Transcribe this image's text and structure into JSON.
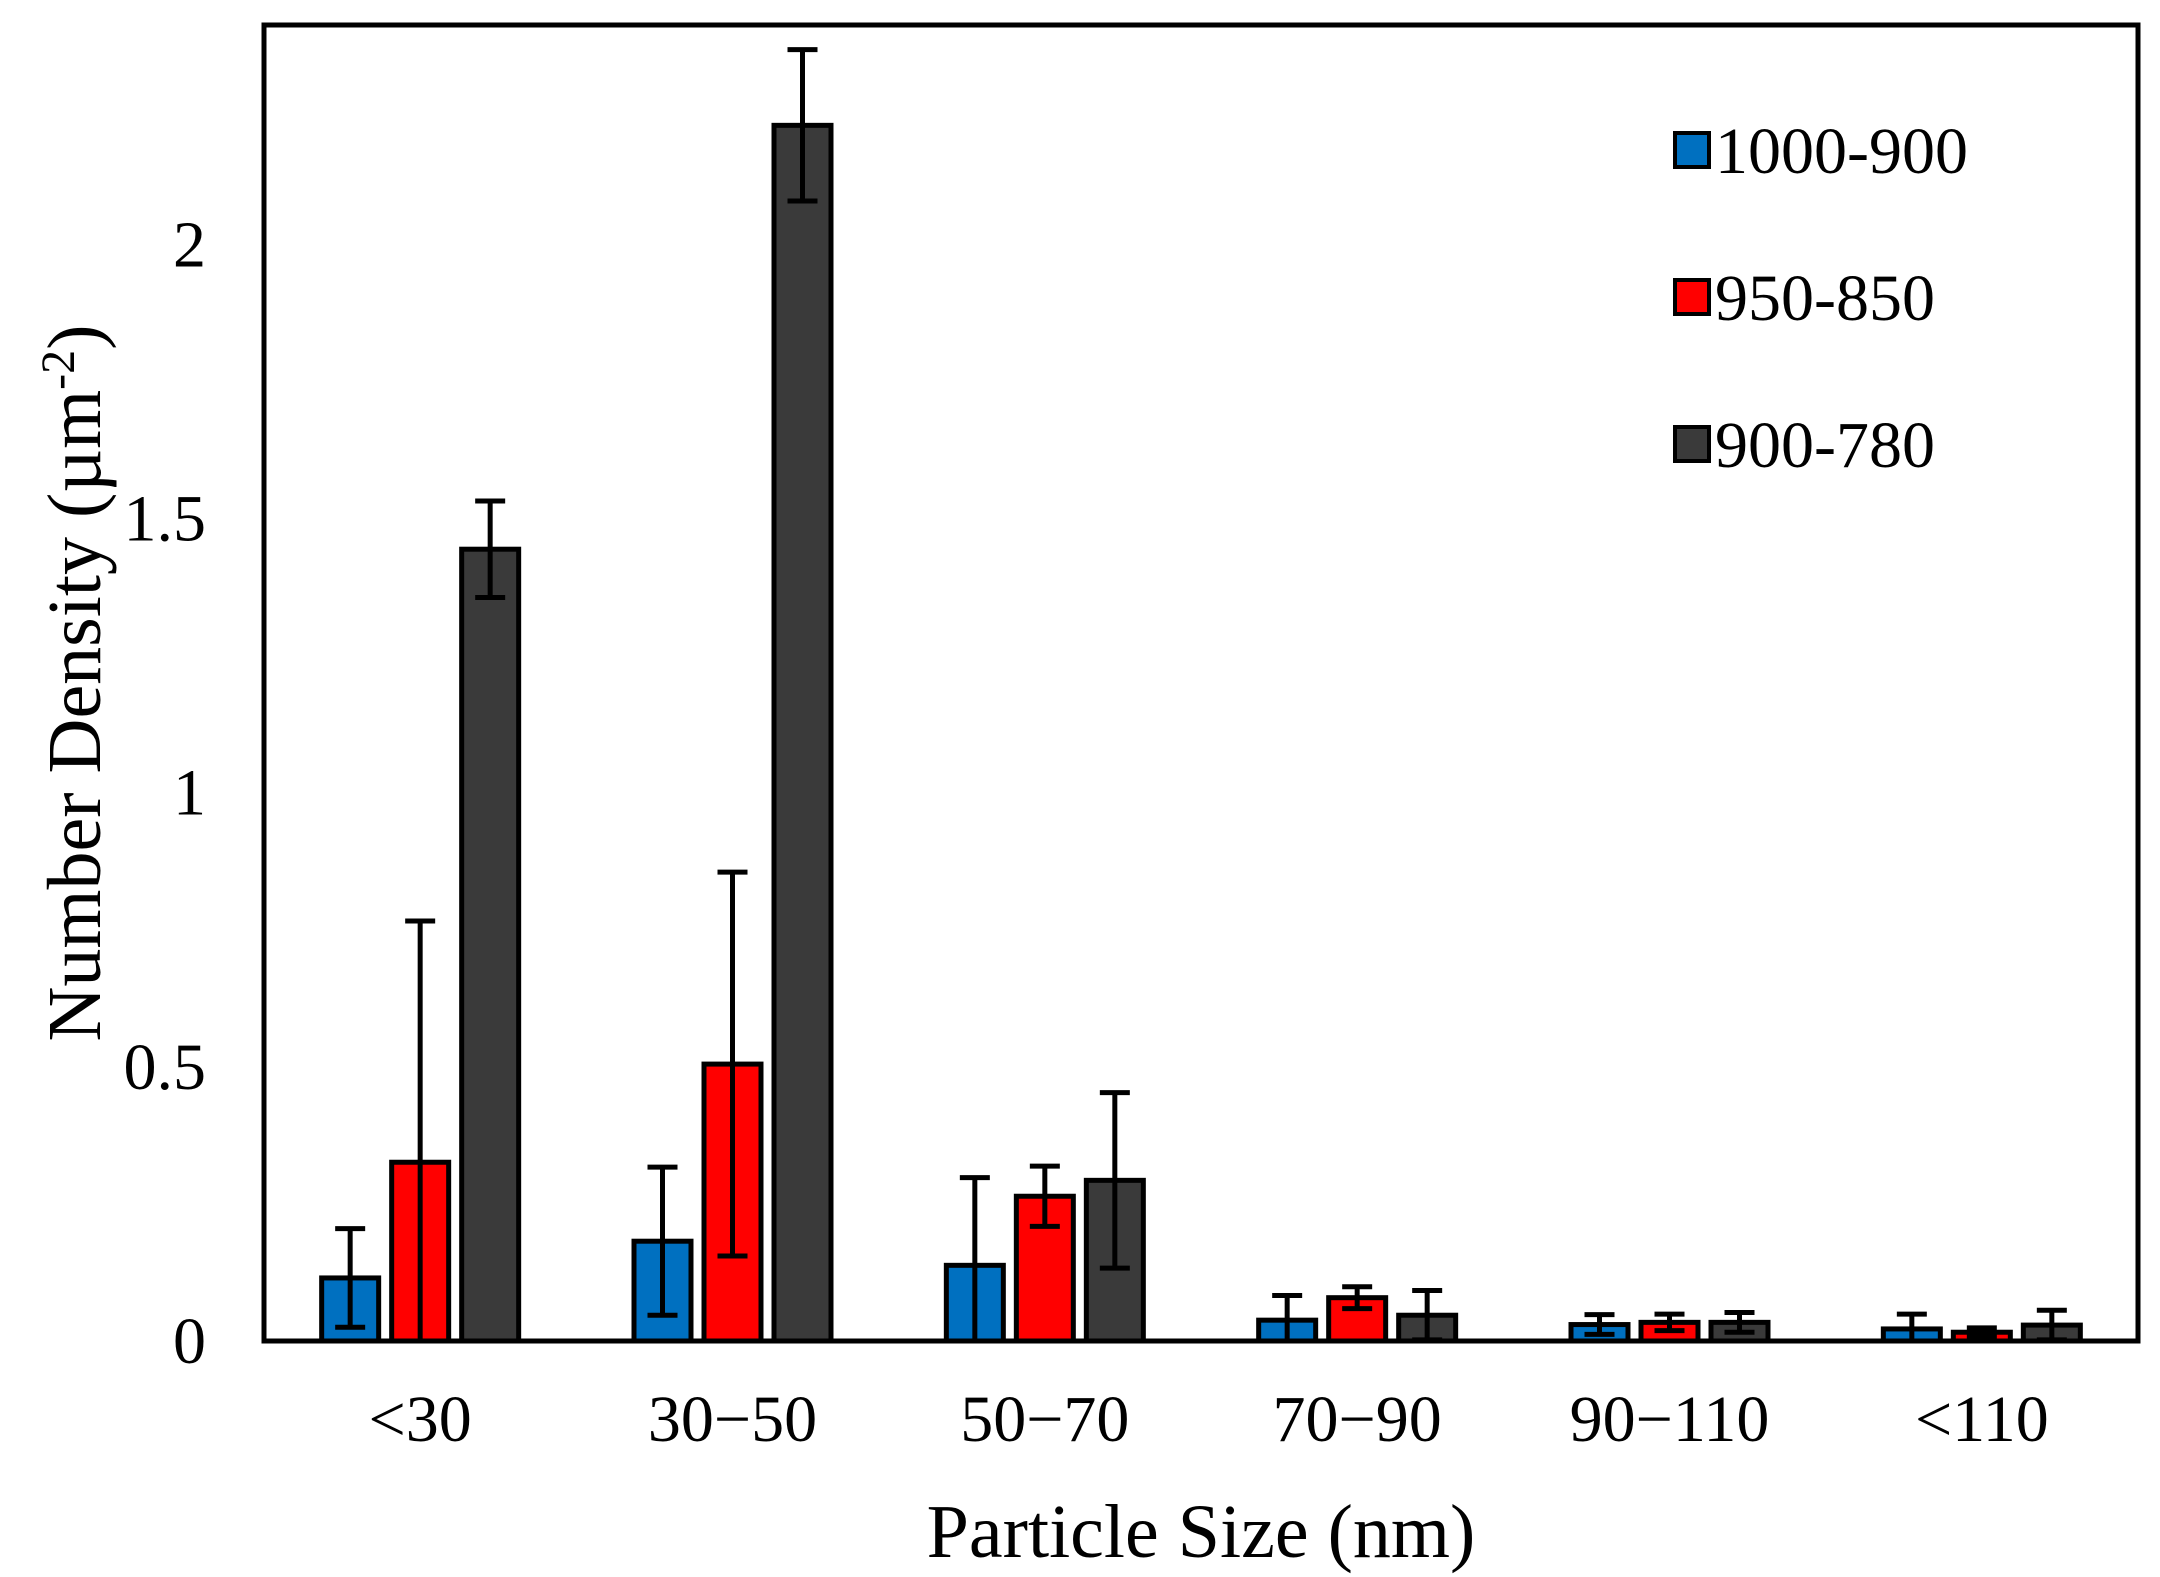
{
  "chart_data": {
    "type": "bar",
    "title": "",
    "xlabel": "Particle Size (nm)",
    "ylabel": "Number Density (µm⁻²)",
    "ylabel_main": "Number Density (µm",
    "ylabel_sup": "-2",
    "ylabel_close": ")",
    "ylim": [
      0,
      2.4
    ],
    "yticks": [
      0,
      0.5,
      1,
      1.5,
      2
    ],
    "ytick_labels": [
      "0",
      "0.5",
      "1",
      "1.5",
      "2"
    ],
    "grid": false,
    "legend_position": "top-right",
    "categories": [
      "<30",
      "30−50",
      "50−70",
      "70−90",
      "90−110",
      "<110"
    ],
    "series": [
      {
        "name": "1000-900",
        "color": "#0070C0",
        "values": [
          0.115,
          0.182,
          0.138,
          0.038,
          0.03,
          0.022
        ],
        "errors": [
          0.09,
          0.135,
          0.16,
          0.045,
          0.018,
          0.027
        ]
      },
      {
        "name": "950-850",
        "color": "#FF0000",
        "values": [
          0.326,
          0.505,
          0.264,
          0.079,
          0.034,
          0.016
        ],
        "errors": [
          0.44,
          0.35,
          0.055,
          0.02,
          0.015,
          0.008
        ]
      },
      {
        "name": "900-780",
        "color": "#3A3A3A",
        "values": [
          1.444,
          2.217,
          0.293,
          0.047,
          0.034,
          0.029
        ],
        "errors": [
          0.088,
          0.138,
          0.16,
          0.045,
          0.018,
          0.027
        ]
      }
    ]
  }
}
